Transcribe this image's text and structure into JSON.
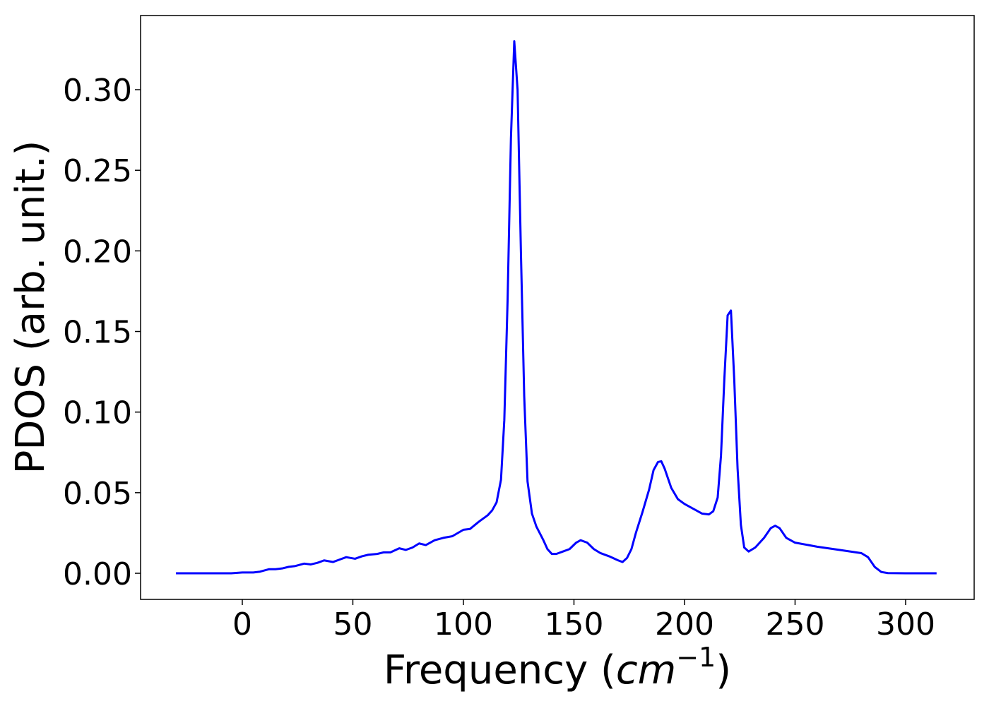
{
  "chart_data": {
    "type": "line",
    "xlabel": [
      "Frequency (",
      "cm",
      "−1",
      ")"
    ],
    "ylabel": "PDOS (arb. unit.)",
    "xlim": [
      -46,
      331
    ],
    "ylim": [
      -0.0162,
      0.346
    ],
    "xticks": [
      0,
      50,
      100,
      150,
      200,
      250,
      300
    ],
    "yticks": [
      {
        "value": 0,
        "label": "0.00"
      },
      {
        "value": 0.05,
        "label": "0.05"
      },
      {
        "value": 0.1,
        "label": "0.10"
      },
      {
        "value": 0.15,
        "label": "0.15"
      },
      {
        "value": 0.2,
        "label": "0.20"
      },
      {
        "value": 0.25,
        "label": "0.25"
      },
      {
        "value": 0.3,
        "label": "0.30"
      }
    ],
    "grid": false,
    "series": [
      {
        "color": "#0000ff",
        "x": [
          -30,
          -5,
          0,
          5,
          8,
          12,
          15,
          18,
          21,
          24,
          28,
          31,
          34,
          37,
          41,
          44,
          47,
          51,
          54,
          57,
          61,
          64,
          67,
          71,
          74,
          77,
          80,
          83,
          87,
          91,
          95,
          100,
          103,
          107,
          111,
          113,
          115,
          117,
          118.5,
          120,
          121.5,
          123,
          124.5,
          126,
          127.5,
          129,
          131,
          133,
          136,
          138,
          140,
          142,
          145,
          148,
          151,
          153,
          156,
          159,
          162,
          166,
          170,
          172,
          174,
          176,
          178,
          181,
          184,
          186,
          188,
          189.5,
          191,
          194,
          197,
          200,
          204,
          208,
          211,
          213,
          215,
          216.5,
          218,
          219.5,
          221,
          222.5,
          224,
          225.5,
          227,
          229,
          232,
          236,
          239,
          241,
          243,
          246,
          250,
          260,
          270,
          280,
          283,
          286,
          289,
          292,
          300,
          314
        ],
        "values": [
          0,
          0,
          0.0005,
          0.0005,
          0.001,
          0.0025,
          0.0025,
          0.003,
          0.004,
          0.0045,
          0.006,
          0.0055,
          0.0065,
          0.008,
          0.007,
          0.0085,
          0.01,
          0.009,
          0.0105,
          0.0115,
          0.012,
          0.013,
          0.013,
          0.0155,
          0.0145,
          0.016,
          0.0185,
          0.0175,
          0.0205,
          0.022,
          0.023,
          0.027,
          0.0275,
          0.032,
          0.036,
          0.039,
          0.044,
          0.058,
          0.095,
          0.17,
          0.27,
          0.33,
          0.3,
          0.2,
          0.11,
          0.057,
          0.037,
          0.029,
          0.021,
          0.015,
          0.012,
          0.012,
          0.0135,
          0.015,
          0.019,
          0.0205,
          0.019,
          0.015,
          0.0125,
          0.0105,
          0.008,
          0.007,
          0.0095,
          0.015,
          0.025,
          0.038,
          0.052,
          0.064,
          0.069,
          0.0695,
          0.065,
          0.053,
          0.046,
          0.043,
          0.04,
          0.037,
          0.0365,
          0.0385,
          0.047,
          0.073,
          0.12,
          0.16,
          0.163,
          0.12,
          0.065,
          0.03,
          0.016,
          0.0135,
          0.016,
          0.022,
          0.028,
          0.0295,
          0.028,
          0.022,
          0.019,
          0.0165,
          0.0145,
          0.0125,
          0.01,
          0.004,
          0.0008,
          0.0001,
          0,
          0
        ]
      }
    ]
  }
}
